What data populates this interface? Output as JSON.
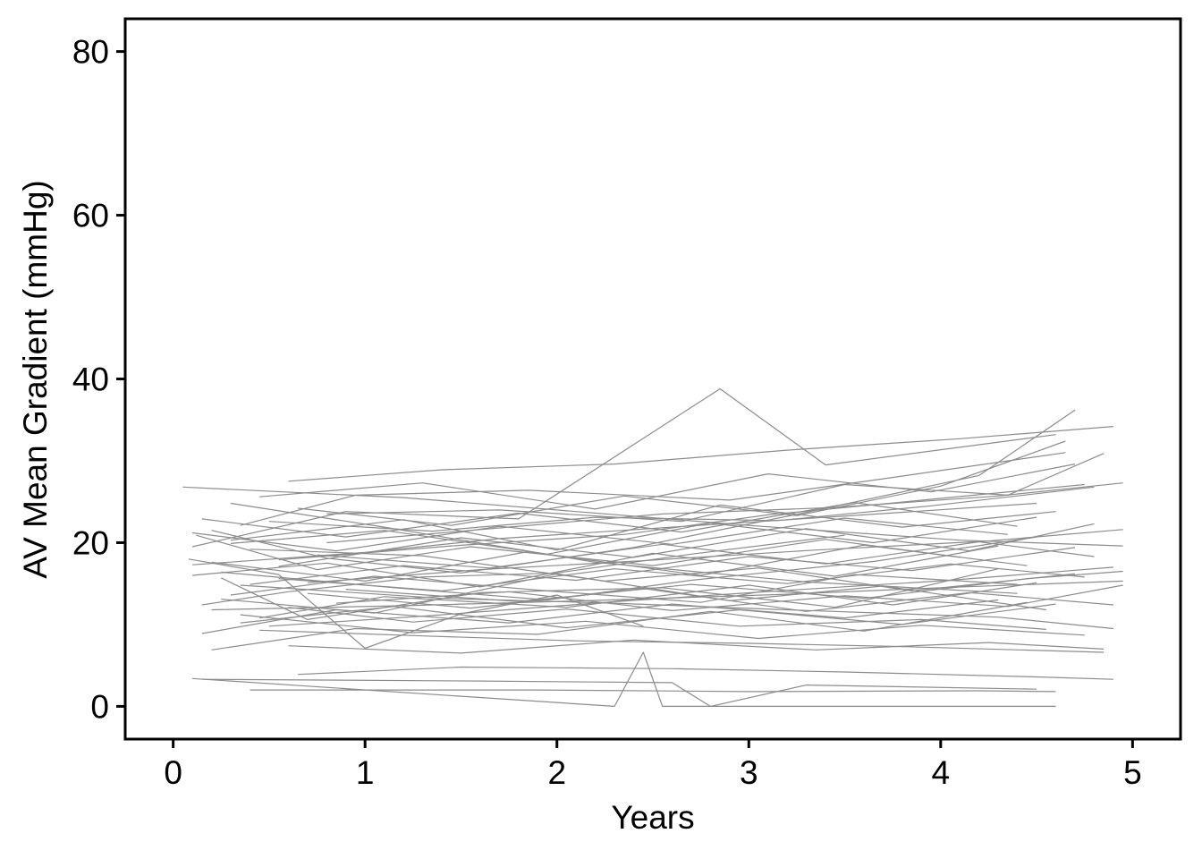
{
  "chart_data": {
    "type": "line",
    "title": "",
    "xlabel": "Years",
    "ylabel": "AV Mean Gradient (mmHg)",
    "xlim": [
      -0.25,
      5.25
    ],
    "ylim": [
      -4,
      84
    ],
    "x_ticks": [
      "0",
      "1",
      "2",
      "3",
      "4",
      "5"
    ],
    "y_ticks": [
      "0",
      "20",
      "40",
      "60",
      "80"
    ],
    "grid": false,
    "legend": "none",
    "line_color": "#8c8c8c",
    "series": [
      {
        "x": [
          0.05,
          1.2,
          2.1,
          3.0,
          4.1,
          4.95
        ],
        "y": [
          26.8,
          25.5,
          23.8,
          22.1,
          20.3,
          19.6
        ]
      },
      {
        "x": [
          0.1,
          0.9,
          1.8,
          2.85,
          3.4,
          4.6
        ],
        "y": [
          19.5,
          23.8,
          22.9,
          38.8,
          29.5,
          33.2
        ]
      },
      {
        "x": [
          0.2,
          0.8,
          1.5,
          2.4,
          3.3,
          4.2,
          4.7
        ],
        "y": [
          21.5,
          18.1,
          16.3,
          19.4,
          23.7,
          28.2,
          36.2
        ]
      },
      {
        "x": [
          0.3,
          1.1,
          2.2,
          3.3,
          4.4
        ],
        "y": [
          24.8,
          21.9,
          17.6,
          15.2,
          13.8
        ]
      },
      {
        "x": [
          0.15,
          0.6,
          1.3,
          2.0,
          2.7,
          3.5
        ],
        "y": [
          12.4,
          14.0,
          15.8,
          16.3,
          18.6,
          20.9
        ]
      },
      {
        "x": [
          0.35,
          1.4,
          2.3,
          3.2,
          4.3,
          4.9
        ],
        "y": [
          14.8,
          13.2,
          12.6,
          11.8,
          10.9,
          9.5
        ]
      },
      {
        "x": [
          0.1,
          1.0,
          1.7,
          2.6,
          3.6,
          4.5
        ],
        "y": [
          17.3,
          18.8,
          20.5,
          21.9,
          23.4,
          24.8
        ]
      },
      {
        "x": [
          0.25,
          0.7,
          1.6,
          2.55,
          3.45,
          4.3
        ],
        "y": [
          15.7,
          10.6,
          13.9,
          14.5,
          12.1,
          16.8
        ]
      },
      {
        "x": [
          0.08,
          0.55,
          1.0,
          1.5,
          2.0,
          2.45
        ],
        "y": [
          18.0,
          16.1,
          7.1,
          11.3,
          13.6,
          9.8
        ]
      },
      {
        "x": [
          0.45,
          1.3,
          2.1,
          3.0,
          3.8,
          4.85
        ],
        "y": [
          9.3,
          8.6,
          8.0,
          7.7,
          7.3,
          6.6
        ]
      },
      {
        "x": [
          0.1,
          2.3,
          2.45,
          2.55,
          3.1,
          4.6
        ],
        "y": [
          3.4,
          0.0,
          6.6,
          0.0,
          0.0,
          0.0
        ]
      },
      {
        "x": [
          0.15,
          1.6,
          2.6,
          2.8,
          3.3,
          4.5
        ],
        "y": [
          3.3,
          3.1,
          2.9,
          0.0,
          2.6,
          2.1
        ]
      },
      {
        "x": [
          0.4,
          1.9,
          3.0,
          4.2,
          4.6
        ],
        "y": [
          2.0,
          2.0,
          1.8,
          1.9,
          1.8
        ]
      },
      {
        "x": [
          0.65,
          1.5,
          2.6,
          3.5,
          4.5,
          4.9
        ],
        "y": [
          3.9,
          4.8,
          4.6,
          4.2,
          3.6,
          3.3
        ]
      },
      {
        "x": [
          0.2,
          1.2,
          2.15,
          3.2,
          4.0,
          4.95
        ],
        "y": [
          11.8,
          12.3,
          12.9,
          13.7,
          14.5,
          15.3
        ]
      },
      {
        "x": [
          0.3,
          1.05,
          1.9,
          2.75,
          3.55,
          4.4
        ],
        "y": [
          13.6,
          15.9,
          14.2,
          12.7,
          16.1,
          14.9
        ]
      },
      {
        "x": [
          0.5,
          1.35,
          2.2,
          3.15,
          3.95,
          4.8
        ],
        "y": [
          22.6,
          21.4,
          23.1,
          22.7,
          24.5,
          26.8
        ]
      },
      {
        "x": [
          0.35,
          0.95,
          1.85,
          2.9,
          3.7,
          4.65
        ],
        "y": [
          22.1,
          25.8,
          26.4,
          25.2,
          27.8,
          31.0
        ]
      },
      {
        "x": [
          0.55,
          1.45,
          2.35,
          3.1,
          3.95,
          4.75
        ],
        "y": [
          17.9,
          19.6,
          21.0,
          23.4,
          25.3,
          27.1
        ]
      },
      {
        "x": [
          0.12,
          0.75,
          1.55,
          2.5,
          3.4,
          4.1
        ],
        "y": [
          20.9,
          16.7,
          19.5,
          17.2,
          20.4,
          18.2
        ]
      },
      {
        "x": [
          0.6,
          1.25,
          2.05,
          2.95,
          3.9,
          4.55
        ],
        "y": [
          12.1,
          10.3,
          11.9,
          9.8,
          10.6,
          9.4
        ]
      },
      {
        "x": [
          0.25,
          1.15,
          1.95,
          2.7,
          3.65,
          4.5
        ],
        "y": [
          16.4,
          14.5,
          13.0,
          15.4,
          17.7,
          20.7
        ]
      },
      {
        "x": [
          0.7,
          1.6,
          2.45,
          3.35,
          4.25,
          4.95
        ],
        "y": [
          15.1,
          16.7,
          17.8,
          19.1,
          20.2,
          21.6
        ]
      },
      {
        "x": [
          0.15,
          0.85,
          1.75,
          2.6,
          3.5,
          4.3
        ],
        "y": [
          8.9,
          11.8,
          10.2,
          12.5,
          10.8,
          13.0
        ]
      },
      {
        "x": [
          0.4,
          1.3,
          2.25,
          3.05,
          3.85,
          4.7
        ],
        "y": [
          19.2,
          18.4,
          15.3,
          16.9,
          14.1,
          16.2
        ]
      },
      {
        "x": [
          0.6,
          1.4,
          2.3,
          3.2,
          4.1,
          4.9
        ],
        "y": [
          27.5,
          28.9,
          29.6,
          31.3,
          32.7,
          34.2
        ]
      },
      {
        "x": [
          0.8,
          1.7,
          2.65,
          3.5,
          4.35,
          4.85
        ],
        "y": [
          23.5,
          24.0,
          22.6,
          27.1,
          25.8,
          30.9
        ]
      },
      {
        "x": [
          0.3,
          1.2,
          2.0,
          2.85,
          3.8,
          4.6
        ],
        "y": [
          20.3,
          22.8,
          19.1,
          24.6,
          21.9,
          23.8
        ]
      },
      {
        "x": [
          0.45,
          1.1,
          2.05,
          3.0,
          3.75,
          4.5
        ],
        "y": [
          10.8,
          13.4,
          12.1,
          14.8,
          12.4,
          15.1
        ]
      },
      {
        "x": [
          0.2,
          0.95,
          1.9,
          2.8,
          3.6,
          4.45
        ],
        "y": [
          6.9,
          9.5,
          8.8,
          11.6,
          9.2,
          12.7
        ]
      },
      {
        "x": [
          0.9,
          1.8,
          2.7,
          3.6,
          4.45,
          4.95
        ],
        "y": [
          14.3,
          12.8,
          14.9,
          13.2,
          15.6,
          16.5
        ]
      },
      {
        "x": [
          0.55,
          1.5,
          2.4,
          3.3,
          4.15,
          4.8
        ],
        "y": [
          17.1,
          20.6,
          18.2,
          21.7,
          19.0,
          22.3
        ]
      },
      {
        "x": [
          0.35,
          1.25,
          2.15,
          3.05,
          3.9,
          4.75
        ],
        "y": [
          11.2,
          9.0,
          10.4,
          8.3,
          9.9,
          8.7
        ]
      },
      {
        "x": [
          0.1,
          0.8,
          1.6,
          2.5,
          3.45,
          4.3
        ],
        "y": [
          16.0,
          17.5,
          14.6,
          18.7,
          15.9,
          19.6
        ]
      },
      {
        "x": [
          0.65,
          1.45,
          2.35,
          3.25,
          4.0,
          4.65
        ],
        "y": [
          24.2,
          22.1,
          25.7,
          23.3,
          26.9,
          32.4
        ]
      },
      {
        "x": [
          0.25,
          1.05,
          2.0,
          2.9,
          3.7,
          4.55
        ],
        "y": [
          13.1,
          11.4,
          16.2,
          12.9,
          14.7,
          11.8
        ]
      },
      {
        "x": [
          0.5,
          1.35,
          2.25,
          3.15,
          4.05,
          4.9
        ],
        "y": [
          9.8,
          11.1,
          12.7,
          14.1,
          15.4,
          17.0
        ]
      },
      {
        "x": [
          0.75,
          1.65,
          2.55,
          3.4,
          4.2,
          4.8
        ],
        "y": [
          18.5,
          16.9,
          19.8,
          17.4,
          20.1,
          18.3
        ]
      },
      {
        "x": [
          0.15,
          0.9,
          1.8,
          2.65,
          3.55,
          4.4
        ],
        "y": [
          22.9,
          20.7,
          23.6,
          21.3,
          24.9,
          22.0
        ]
      },
      {
        "x": [
          0.4,
          1.2,
          2.1,
          3.0,
          3.85,
          4.7
        ],
        "y": [
          14.9,
          17.2,
          15.4,
          18.3,
          16.6,
          19.4
        ]
      },
      {
        "x": [
          0.85,
          1.75,
          2.6,
          3.5,
          4.35,
          4.95
        ],
        "y": [
          12.6,
          14.0,
          11.7,
          13.5,
          12.2,
          14.8
        ]
      },
      {
        "x": [
          0.3,
          1.1,
          1.95,
          2.8,
          3.65,
          4.5
        ],
        "y": [
          19.9,
          21.5,
          18.6,
          22.4,
          20.0,
          23.1
        ]
      },
      {
        "x": [
          0.6,
          1.5,
          2.4,
          3.35,
          4.25,
          4.85
        ],
        "y": [
          7.4,
          6.5,
          8.1,
          6.9,
          7.8,
          7.0
        ]
      },
      {
        "x": [
          0.2,
          1.0,
          1.85,
          2.75,
          3.6,
          4.45
        ],
        "y": [
          17.6,
          15.3,
          18.9,
          16.0,
          19.7,
          17.2
        ]
      },
      {
        "x": [
          0.45,
          1.3,
          2.2,
          3.1,
          3.95,
          4.7
        ],
        "y": [
          25.6,
          27.3,
          24.1,
          28.4,
          26.2,
          29.6
        ]
      },
      {
        "x": [
          0.7,
          1.55,
          2.45,
          3.3,
          4.15,
          4.9
        ],
        "y": [
          13.8,
          12.0,
          14.4,
          11.6,
          13.9,
          12.4
        ]
      },
      {
        "x": [
          0.1,
          0.85,
          1.7,
          2.6,
          3.5,
          4.35
        ],
        "y": [
          21.2,
          19.0,
          22.0,
          19.8,
          23.0,
          21.0
        ]
      },
      {
        "x": [
          0.55,
          1.4,
          2.3,
          3.2,
          4.05,
          4.75
        ],
        "y": [
          15.6,
          14.1,
          16.8,
          15.0,
          17.4,
          15.8
        ]
      },
      {
        "x": [
          0.35,
          1.15,
          2.05,
          2.95,
          3.8,
          4.6
        ],
        "y": [
          10.2,
          12.2,
          9.6,
          11.8,
          10.0,
          12.5
        ]
      },
      {
        "x": [
          0.8,
          1.7,
          2.55,
          3.45,
          4.3,
          4.95
        ],
        "y": [
          20.0,
          21.8,
          23.5,
          24.3,
          25.7,
          27.3
        ]
      }
    ]
  }
}
